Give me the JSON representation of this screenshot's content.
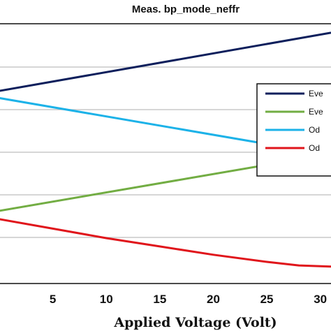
{
  "chart_data": {
    "type": "line",
    "title": "Meas. bp_mode_neffr",
    "xlabel": "Applied  Voltage (Volt)",
    "ylabel": "",
    "xlim": [
      0,
      31
    ],
    "ylim": [
      0,
      1
    ],
    "grid": true,
    "x_ticks": [
      5,
      10,
      15,
      20,
      25,
      30
    ],
    "x_tick_labels": [
      "5",
      "10",
      "15",
      "20",
      "25",
      "30"
    ],
    "legend_position": "right",
    "series": [
      {
        "name": "Eve",
        "color": "#0d1f5c",
        "x": [
          0,
          31
        ],
        "y": [
          0.72,
          0.965
        ]
      },
      {
        "name": "Eve",
        "color": "#72ad43",
        "x": [
          0,
          31
        ],
        "y": [
          0.215,
          0.455
        ]
      },
      {
        "name": "Od",
        "color": "#1cb2e8",
        "x": [
          0,
          31
        ],
        "y": [
          0.69,
          0.45
        ]
      },
      {
        "name": "Od",
        "color": "#e0151b",
        "x": [
          0,
          5,
          10,
          15,
          20,
          25,
          28,
          31
        ],
        "y": [
          0.18,
          0.14,
          0.1,
          0.065,
          0.03,
          0.0,
          -0.015,
          -0.02
        ]
      }
    ]
  }
}
